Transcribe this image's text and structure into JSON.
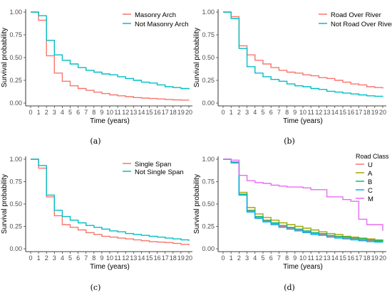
{
  "chart_data": [
    {
      "type": "line",
      "step": true,
      "panel_label": "(a)",
      "xlabel": "Time (years)",
      "ylabel": "Survival probability",
      "x": [
        0,
        1,
        2,
        3,
        4,
        5,
        6,
        7,
        8,
        9,
        10,
        11,
        12,
        13,
        14,
        15,
        16,
        17,
        18,
        19,
        20
      ],
      "xlim": [
        0,
        20
      ],
      "ylim": [
        0,
        1
      ],
      "yticks": [
        "0.00",
        "0.25",
        "0.50",
        "0.75",
        "1.00"
      ],
      "grid": false,
      "legend_position": "top-right",
      "series": [
        {
          "name": "Masonry Arch",
          "color": "#F8766D",
          "values": [
            1.0,
            0.91,
            0.52,
            0.33,
            0.24,
            0.19,
            0.16,
            0.14,
            0.12,
            0.105,
            0.09,
            0.08,
            0.07,
            0.06,
            0.055,
            0.05,
            0.045,
            0.04,
            0.035,
            0.033,
            0.03
          ]
        },
        {
          "name": "Not Masonry Arch",
          "color": "#00BFC4",
          "values": [
            1.0,
            0.96,
            0.69,
            0.53,
            0.47,
            0.43,
            0.39,
            0.36,
            0.34,
            0.32,
            0.31,
            0.29,
            0.27,
            0.25,
            0.23,
            0.22,
            0.2,
            0.18,
            0.17,
            0.16,
            0.15
          ]
        }
      ]
    },
    {
      "type": "line",
      "step": true,
      "panel_label": "(b)",
      "xlabel": "Time (years)",
      "ylabel": "Survival probability",
      "x": [
        0,
        1,
        2,
        3,
        4,
        5,
        6,
        7,
        8,
        9,
        10,
        11,
        12,
        13,
        14,
        15,
        16,
        17,
        18,
        19,
        20
      ],
      "xlim": [
        0,
        20
      ],
      "ylim": [
        0,
        1
      ],
      "yticks": [
        "0.00",
        "0.25",
        "0.50",
        "0.75",
        "1.00"
      ],
      "grid": false,
      "legend_position": "top-right",
      "series": [
        {
          "name": "Road Over River",
          "color": "#F8766D",
          "values": [
            1.0,
            0.95,
            0.63,
            0.53,
            0.47,
            0.43,
            0.39,
            0.36,
            0.34,
            0.33,
            0.31,
            0.3,
            0.28,
            0.27,
            0.25,
            0.23,
            0.21,
            0.2,
            0.18,
            0.17,
            0.16
          ]
        },
        {
          "name": "Not Road Over River",
          "color": "#00BFC4",
          "values": [
            1.0,
            0.93,
            0.6,
            0.4,
            0.33,
            0.29,
            0.26,
            0.24,
            0.21,
            0.19,
            0.18,
            0.16,
            0.15,
            0.13,
            0.12,
            0.11,
            0.1,
            0.09,
            0.08,
            0.075,
            0.07
          ]
        }
      ]
    },
    {
      "type": "line",
      "step": true,
      "panel_label": "(c)",
      "xlabel": "Time (years)",
      "ylabel": "Survival probability",
      "x": [
        0,
        1,
        2,
        3,
        4,
        5,
        6,
        7,
        8,
        9,
        10,
        11,
        12,
        13,
        14,
        15,
        16,
        17,
        18,
        19,
        20
      ],
      "xlim": [
        0,
        20
      ],
      "ylim": [
        0,
        1
      ],
      "yticks": [
        "0.00",
        "0.25",
        "0.50",
        "0.75",
        "1.00"
      ],
      "grid": false,
      "legend_position": "top-right",
      "series": [
        {
          "name": "Single Span",
          "color": "#F8766D",
          "values": [
            1.0,
            0.9,
            0.58,
            0.37,
            0.27,
            0.24,
            0.21,
            0.18,
            0.16,
            0.14,
            0.13,
            0.12,
            0.11,
            0.1,
            0.09,
            0.08,
            0.075,
            0.07,
            0.06,
            0.05,
            0.04
          ]
        },
        {
          "name": "Not Single Span",
          "color": "#00BFC4",
          "values": [
            1.0,
            0.93,
            0.6,
            0.43,
            0.36,
            0.32,
            0.29,
            0.26,
            0.24,
            0.22,
            0.2,
            0.19,
            0.17,
            0.16,
            0.15,
            0.14,
            0.13,
            0.12,
            0.11,
            0.1,
            0.09
          ]
        }
      ]
    },
    {
      "type": "line",
      "step": true,
      "panel_label": "(d)",
      "xlabel": "Time (years)",
      "ylabel": "Survival probability",
      "x": [
        0,
        1,
        2,
        3,
        4,
        5,
        6,
        7,
        8,
        9,
        10,
        11,
        12,
        13,
        14,
        15,
        16,
        17,
        18,
        19,
        20
      ],
      "xlim": [
        0,
        20
      ],
      "ylim": [
        0,
        1
      ],
      "yticks": [
        "0.00",
        "0.25",
        "0.50",
        "0.75",
        "1.00"
      ],
      "grid": false,
      "legend_position": "right",
      "legend_title": "Road Class",
      "series": [
        {
          "name": "U",
          "color": "#F8766D",
          "values": [
            1.0,
            0.97,
            0.6,
            0.42,
            0.35,
            0.31,
            0.28,
            0.25,
            0.23,
            0.21,
            0.19,
            0.17,
            0.16,
            0.14,
            0.13,
            0.12,
            0.11,
            0.1,
            0.09,
            0.085,
            0.08
          ]
        },
        {
          "name": "A",
          "color": "#A3A500",
          "values": [
            1.0,
            0.97,
            0.63,
            0.46,
            0.39,
            0.35,
            0.32,
            0.29,
            0.27,
            0.25,
            0.23,
            0.21,
            0.19,
            0.17,
            0.16,
            0.14,
            0.13,
            0.12,
            0.11,
            0.1,
            0.09
          ]
        },
        {
          "name": "B",
          "color": "#00BF7D",
          "values": [
            1.0,
            0.96,
            0.61,
            0.43,
            0.36,
            0.32,
            0.29,
            0.26,
            0.24,
            0.22,
            0.2,
            0.18,
            0.17,
            0.15,
            0.14,
            0.13,
            0.12,
            0.11,
            0.1,
            0.09,
            0.085
          ]
        },
        {
          "name": "C",
          "color": "#00B0F6",
          "values": [
            1.0,
            0.96,
            0.6,
            0.41,
            0.34,
            0.3,
            0.27,
            0.24,
            0.22,
            0.2,
            0.18,
            0.16,
            0.15,
            0.13,
            0.12,
            0.11,
            0.1,
            0.09,
            0.08,
            0.075,
            0.07
          ]
        },
        {
          "name": "M",
          "color": "#E76BF3",
          "values": [
            1.0,
            0.99,
            0.82,
            0.76,
            0.74,
            0.73,
            0.71,
            0.7,
            0.69,
            0.69,
            0.68,
            0.66,
            0.66,
            0.58,
            0.58,
            0.55,
            0.53,
            0.33,
            0.27,
            0.27,
            0.2
          ]
        }
      ]
    }
  ]
}
